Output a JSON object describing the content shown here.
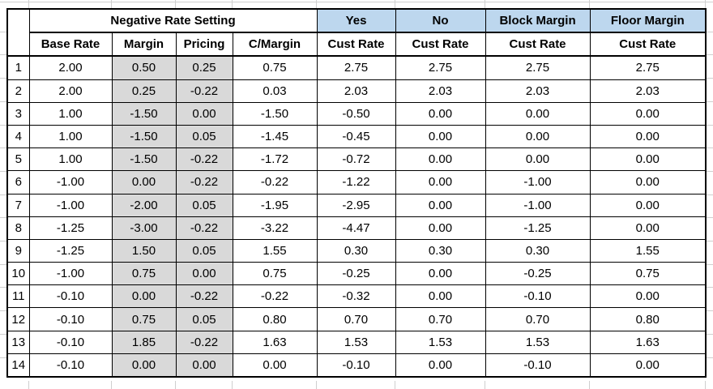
{
  "table": {
    "group_title": "Negative Rate Setting",
    "scenario_headers": [
      "Yes",
      "No",
      "Block Margin",
      "Floor Margin"
    ],
    "sub_headers": [
      "Base Rate",
      "Margin",
      "Pricing",
      "C/Margin",
      "Cust Rate",
      "Cust Rate",
      "Cust Rate",
      "Cust Rate"
    ],
    "rows": [
      {
        "num": "1",
        "cells": [
          "2.00",
          "0.50",
          "0.25",
          "0.75",
          "2.75",
          "2.75",
          "2.75",
          "2.75"
        ]
      },
      {
        "num": "2",
        "cells": [
          "2.00",
          "0.25",
          "-0.22",
          "0.03",
          "2.03",
          "2.03",
          "2.03",
          "2.03"
        ]
      },
      {
        "num": "3",
        "cells": [
          "1.00",
          "-1.50",
          "0.00",
          "-1.50",
          "-0.50",
          "0.00",
          "0.00",
          "0.00"
        ]
      },
      {
        "num": "4",
        "cells": [
          "1.00",
          "-1.50",
          "0.05",
          "-1.45",
          "-0.45",
          "0.00",
          "0.00",
          "0.00"
        ]
      },
      {
        "num": "5",
        "cells": [
          "1.00",
          "-1.50",
          "-0.22",
          "-1.72",
          "-0.72",
          "0.00",
          "0.00",
          "0.00"
        ]
      },
      {
        "num": "6",
        "cells": [
          "-1.00",
          "0.00",
          "-0.22",
          "-0.22",
          "-1.22",
          "0.00",
          "-1.00",
          "0.00"
        ]
      },
      {
        "num": "7",
        "cells": [
          "-1.00",
          "-2.00",
          "0.05",
          "-1.95",
          "-2.95",
          "0.00",
          "-1.00",
          "0.00"
        ]
      },
      {
        "num": "8",
        "cells": [
          "-1.25",
          "-3.00",
          "-0.22",
          "-3.22",
          "-4.47",
          "0.00",
          "-1.25",
          "0.00"
        ]
      },
      {
        "num": "9",
        "cells": [
          "-1.25",
          "1.50",
          "0.05",
          "1.55",
          "0.30",
          "0.30",
          "0.30",
          "1.55"
        ]
      },
      {
        "num": "10",
        "cells": [
          "-1.00",
          "0.75",
          "0.00",
          "0.75",
          "-0.25",
          "0.00",
          "-0.25",
          "0.75"
        ]
      },
      {
        "num": "11",
        "cells": [
          "-0.10",
          "0.00",
          "-0.22",
          "-0.22",
          "-0.32",
          "0.00",
          "-0.10",
          "0.00"
        ]
      },
      {
        "num": "12",
        "cells": [
          "-0.10",
          "0.75",
          "0.05",
          "0.80",
          "0.70",
          "0.70",
          "0.70",
          "0.80"
        ]
      },
      {
        "num": "13",
        "cells": [
          "-0.10",
          "1.85",
          "-0.22",
          "1.63",
          "1.53",
          "1.53",
          "1.53",
          "1.63"
        ]
      },
      {
        "num": "14",
        "cells": [
          "-0.10",
          "0.00",
          "0.00",
          "0.00",
          "-0.10",
          "0.00",
          "-0.10",
          "0.00"
        ]
      }
    ],
    "colors": {
      "header_blue": "#BDD7EE",
      "shaded_gray": "#D9D9D9",
      "border_black": "#000000",
      "gridline_gray": "#CFCFCF"
    }
  }
}
